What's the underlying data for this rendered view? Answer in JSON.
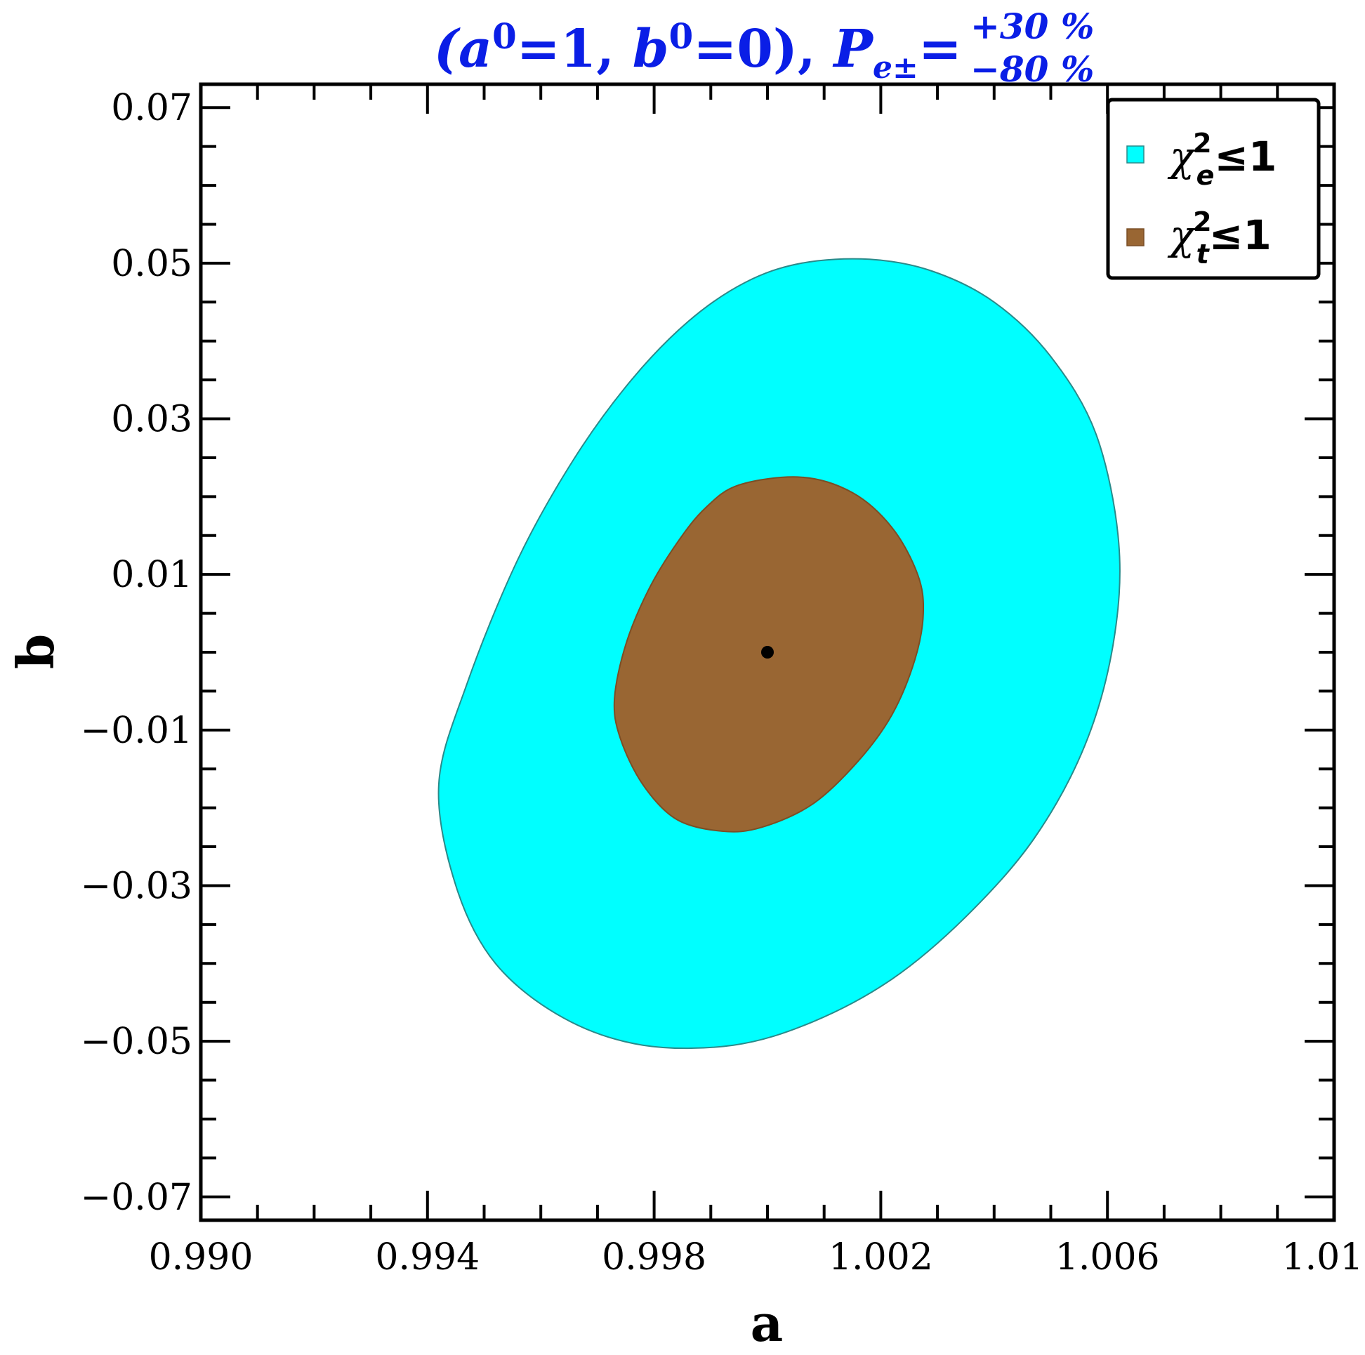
{
  "chart_data": {
    "type": "contour",
    "title": {
      "open": "(",
      "a_sym": "a",
      "a_sup": "0",
      "a_val": "=1, ",
      "b_sym": "b",
      "b_sup": "0",
      "b_val": "=0), ",
      "p_sym": "P",
      "p_sub": "e±",
      "eq": "=",
      "p_sup_val": "+30 %",
      "p_sub_val": "−80 %"
    },
    "xlabel": "a",
    "ylabel": "b",
    "xlim": [
      0.99,
      1.01
    ],
    "ylim": [
      -0.073,
      0.073
    ],
    "x_ticks": [
      0.99,
      0.994,
      0.998,
      1.002,
      1.006,
      1.01
    ],
    "x_tick_labels": [
      "0.990",
      "0.994",
      "0.998",
      "1.002",
      "1.006",
      "1.010"
    ],
    "y_ticks": [
      0.07,
      0.05,
      0.03,
      0.01,
      -0.01,
      -0.03,
      -0.05,
      -0.07
    ],
    "y_tick_labels": [
      "0.07",
      "0.05",
      "0.03",
      "0.01",
      "−0.01",
      "−0.03",
      "−0.05",
      "−0.07"
    ],
    "x_minor_step": 0.001,
    "y_minor_step": 0.005,
    "regions": [
      {
        "id": "chi2-e",
        "color": "#00ffff",
        "edge": "#2a8a8a",
        "outline": [
          [
            0.9942,
            -0.017
          ],
          [
            0.9947,
            -0.004
          ],
          [
            0.9956,
            0.012
          ],
          [
            0.9966,
            0.025
          ],
          [
            0.9976,
            0.035
          ],
          [
            0.9986,
            0.0425
          ],
          [
            0.9996,
            0.0475
          ],
          [
            1.0006,
            0.05
          ],
          [
            1.0018,
            0.0505
          ],
          [
            1.0029,
            0.049
          ],
          [
            1.004,
            0.045
          ],
          [
            1.005,
            0.038
          ],
          [
            1.0058,
            0.028
          ],
          [
            1.0062,
            0.014
          ],
          [
            1.0061,
            0.001
          ],
          [
            1.0056,
            -0.012
          ],
          [
            1.0047,
            -0.024
          ],
          [
            1.0035,
            -0.034
          ],
          [
            1.0022,
            -0.042
          ],
          [
            1.0008,
            -0.0475
          ],
          [
            0.9994,
            -0.0505
          ],
          [
            0.9978,
            -0.0505
          ],
          [
            0.9964,
            -0.047
          ],
          [
            0.9952,
            -0.04
          ],
          [
            0.9945,
            -0.03
          ],
          [
            0.9942,
            -0.017
          ]
        ]
      },
      {
        "id": "chi2-t",
        "color": "#996633",
        "edge": "#7a4f26",
        "outline": [
          [
            0.9973,
            -0.006
          ],
          [
            0.9975,
            0.001
          ],
          [
            0.9979,
            0.008
          ],
          [
            0.9984,
            0.014
          ],
          [
            0.9989,
            0.0185
          ],
          [
            0.9995,
            0.0215
          ],
          [
            1.0006,
            0.0225
          ],
          [
            1.0015,
            0.0205
          ],
          [
            1.0022,
            0.016
          ],
          [
            1.00265,
            0.01
          ],
          [
            1.00275,
            0.005
          ],
          [
            1.0026,
            -0.001
          ],
          [
            1.0022,
            -0.008
          ],
          [
            1.0016,
            -0.014
          ],
          [
            1.0008,
            -0.0195
          ],
          [
            0.9999,
            -0.0225
          ],
          [
            0.9992,
            -0.023
          ],
          [
            0.9984,
            -0.0215
          ],
          [
            0.9978,
            -0.017
          ],
          [
            0.9974,
            -0.011
          ],
          [
            0.9973,
            -0.006
          ]
        ]
      }
    ],
    "points": [
      {
        "x": 1.0,
        "y": 0.0,
        "color": "#000000"
      }
    ],
    "legend": {
      "position": "top-right",
      "entries": [
        {
          "symbol": "χ",
          "sub": "e",
          "sup": "2",
          "rel": "≤1",
          "color": "#00ffff"
        },
        {
          "symbol": "χ",
          "sub": "t",
          "sup": "2",
          "rel": "≤1",
          "color": "#996633"
        }
      ]
    },
    "grid": false
  }
}
